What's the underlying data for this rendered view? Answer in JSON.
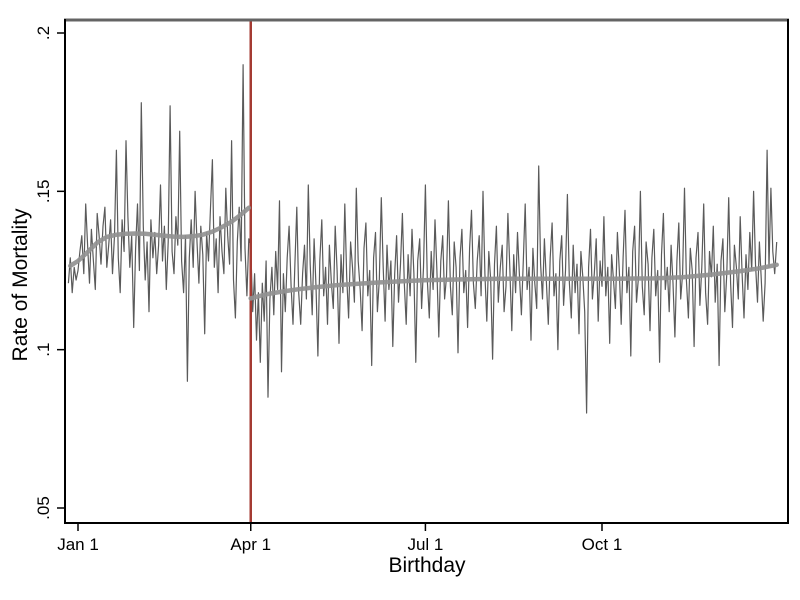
{
  "figure": {
    "background": "#ffffff",
    "top_border_color": "#646464",
    "axis_line_color": "#000000",
    "tick_label_color": "#000000",
    "tick_font_px": 17
  },
  "chart_data": {
    "type": "line",
    "title": "",
    "xlabel": "Birthday",
    "ylabel": "Rate of Mortality",
    "x_unit": "day of year (0 = Jan 1)",
    "xlim_days": [
      -7,
      370
    ],
    "ylim": [
      0.045,
      0.204
    ],
    "grid": false,
    "legend": "none",
    "x_ticks": [
      {
        "day": 0,
        "label": "Jan 1"
      },
      {
        "day": 90,
        "label": "Apr 1"
      },
      {
        "day": 181,
        "label": "Jul 1"
      },
      {
        "day": 273,
        "label": "Oct 1"
      }
    ],
    "y_ticks": [
      {
        "value": 0.05,
        "label": ".05"
      },
      {
        "value": 0.1,
        "label": ".1"
      },
      {
        "value": 0.15,
        "label": ".15"
      },
      {
        "value": 0.2,
        "label": ".2"
      }
    ],
    "vline": {
      "day": 90,
      "color": "#a43a32",
      "width": 2.5,
      "name": "apr1-cutoff"
    },
    "series": [
      {
        "name": "daily-mortality-rate",
        "color": "#5a5a5a",
        "width": 1.2,
        "start_day": -5,
        "values": [
          0.121,
          0.129,
          0.118,
          0.126,
          0.122,
          0.125,
          0.131,
          0.136,
          0.124,
          0.146,
          0.133,
          0.121,
          0.138,
          0.128,
          0.119,
          0.143,
          0.136,
          0.127,
          0.139,
          0.145,
          0.126,
          0.133,
          0.141,
          0.124,
          0.136,
          0.163,
          0.129,
          0.118,
          0.141,
          0.131,
          0.166,
          0.142,
          0.126,
          0.136,
          0.107,
          0.132,
          0.146,
          0.125,
          0.178,
          0.139,
          0.122,
          0.134,
          0.112,
          0.141,
          0.129,
          0.137,
          0.124,
          0.133,
          0.152,
          0.128,
          0.139,
          0.119,
          0.134,
          0.177,
          0.131,
          0.124,
          0.142,
          0.133,
          0.169,
          0.128,
          0.118,
          0.136,
          0.09,
          0.129,
          0.141,
          0.126,
          0.15,
          0.134,
          0.121,
          0.139,
          0.13,
          0.105,
          0.137,
          0.128,
          0.144,
          0.16,
          0.126,
          0.135,
          0.118,
          0.142,
          0.131,
          0.124,
          0.151,
          0.136,
          0.127,
          0.166,
          0.122,
          0.11,
          0.134,
          0.145,
          0.128,
          0.19,
          0.132,
          0.117,
          0.135,
          0.133,
          0.112,
          0.124,
          0.103,
          0.118,
          0.096,
          0.121,
          0.109,
          0.128,
          0.085,
          0.116,
          0.126,
          0.111,
          0.131,
          0.119,
          0.147,
          0.093,
          0.124,
          0.112,
          0.129,
          0.139,
          0.12,
          0.108,
          0.127,
          0.145,
          0.118,
          0.108,
          0.124,
          0.133,
          0.116,
          0.152,
          0.127,
          0.111,
          0.135,
          0.12,
          0.098,
          0.128,
          0.141,
          0.117,
          0.126,
          0.108,
          0.133,
          0.121,
          0.113,
          0.139,
          0.125,
          0.102,
          0.13,
          0.118,
          0.146,
          0.123,
          0.11,
          0.134,
          0.126,
          0.115,
          0.151,
          0.128,
          0.119,
          0.106,
          0.132,
          0.14,
          0.117,
          0.125,
          0.095,
          0.129,
          0.137,
          0.112,
          0.122,
          0.148,
          0.126,
          0.109,
          0.133,
          0.119,
          0.128,
          0.101,
          0.124,
          0.136,
          0.115,
          0.127,
          0.143,
          0.121,
          0.108,
          0.13,
          0.117,
          0.138,
          0.124,
          0.096,
          0.128,
          0.135,
          0.113,
          0.126,
          0.152,
          0.122,
          0.11,
          0.131,
          0.119,
          0.141,
          0.125,
          0.104,
          0.128,
          0.136,
          0.116,
          0.123,
          0.147,
          0.12,
          0.111,
          0.134,
          0.126,
          0.099,
          0.129,
          0.138,
          0.118,
          0.125,
          0.107,
          0.132,
          0.144,
          0.121,
          0.113,
          0.128,
          0.136,
          0.117,
          0.15,
          0.124,
          0.109,
          0.131,
          0.122,
          0.097,
          0.127,
          0.139,
          0.115,
          0.126,
          0.133,
          0.112,
          0.12,
          0.143,
          0.125,
          0.106,
          0.13,
          0.118,
          0.137,
          0.123,
          0.111,
          0.128,
          0.146,
          0.119,
          0.126,
          0.103,
          0.132,
          0.121,
          0.113,
          0.158,
          0.127,
          0.116,
          0.135,
          0.122,
          0.108,
          0.129,
          0.14,
          0.117,
          0.124,
          0.1,
          0.128,
          0.136,
          0.114,
          0.125,
          0.149,
          0.121,
          0.11,
          0.133,
          0.118,
          0.127,
          0.105,
          0.131,
          0.123,
          0.112,
          0.08,
          0.126,
          0.138,
          0.116,
          0.124,
          0.135,
          0.109,
          0.128,
          0.12,
          0.142,
          0.117,
          0.126,
          0.102,
          0.13,
          0.122,
          0.113,
          0.137,
          0.125,
          0.108,
          0.129,
          0.144,
          0.118,
          0.126,
          0.098,
          0.131,
          0.139,
          0.115,
          0.123,
          0.15,
          0.12,
          0.111,
          0.134,
          0.127,
          0.106,
          0.129,
          0.138,
          0.117,
          0.125,
          0.096,
          0.13,
          0.143,
          0.119,
          0.126,
          0.112,
          0.133,
          0.121,
          0.104,
          0.128,
          0.14,
          0.116,
          0.124,
          0.151,
          0.122,
          0.11,
          0.132,
          0.125,
          0.101,
          0.129,
          0.137,
          0.114,
          0.126,
          0.146,
          0.118,
          0.108,
          0.131,
          0.123,
          0.139,
          0.115,
          0.127,
          0.095,
          0.128,
          0.135,
          0.112,
          0.124,
          0.148,
          0.121,
          0.107,
          0.133,
          0.126,
          0.116,
          0.142,
          0.124,
          0.11,
          0.13,
          0.119,
          0.137,
          0.125,
          0.15,
          0.127,
          0.115,
          0.134,
          0.122,
          0.109,
          0.121,
          0.163,
          0.126,
          0.151,
          0.131,
          0.124,
          0.134
        ]
      },
      {
        "name": "lowess-smooth-pre-apr1",
        "color": "#919191",
        "width": 4.5,
        "points": [
          [
            -4,
            0.1265
          ],
          [
            0,
            0.128
          ],
          [
            5,
            0.1308
          ],
          [
            10,
            0.1338
          ],
          [
            15,
            0.1356
          ],
          [
            20,
            0.1363
          ],
          [
            25,
            0.1366
          ],
          [
            30,
            0.1367
          ],
          [
            35,
            0.1366
          ],
          [
            40,
            0.1363
          ],
          [
            45,
            0.136
          ],
          [
            50,
            0.1357
          ],
          [
            55,
            0.1356
          ],
          [
            60,
            0.1358
          ],
          [
            65,
            0.1363
          ],
          [
            70,
            0.1373
          ],
          [
            75,
            0.1387
          ],
          [
            80,
            0.1404
          ],
          [
            85,
            0.1427
          ],
          [
            89,
            0.1448
          ]
        ]
      },
      {
        "name": "lowess-smooth-post-apr1",
        "color": "#919191",
        "width": 4.5,
        "points": [
          [
            90,
            0.1162
          ],
          [
            95,
            0.117
          ],
          [
            100,
            0.1177
          ],
          [
            107,
            0.1184
          ],
          [
            115,
            0.1191
          ],
          [
            125,
            0.1198
          ],
          [
            135,
            0.1204
          ],
          [
            150,
            0.121
          ],
          [
            165,
            0.1215
          ],
          [
            180,
            0.1219
          ],
          [
            200,
            0.1222
          ],
          [
            220,
            0.1224
          ],
          [
            240,
            0.1224
          ],
          [
            260,
            0.1224
          ],
          [
            280,
            0.1224
          ],
          [
            300,
            0.1225
          ],
          [
            315,
            0.1229
          ],
          [
            330,
            0.1237
          ],
          [
            345,
            0.1248
          ],
          [
            355,
            0.1257
          ],
          [
            364,
            0.1268
          ]
        ]
      }
    ]
  }
}
